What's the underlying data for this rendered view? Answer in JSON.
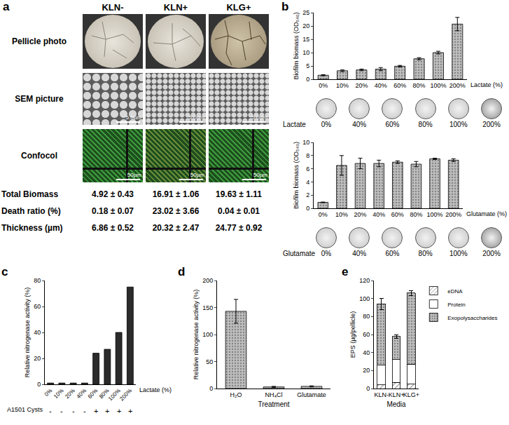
{
  "panel_a": {
    "label": "a",
    "columns": [
      "KLN-",
      "KLN+",
      "KLG+"
    ],
    "image_rows": [
      {
        "label": "Pellicle photo"
      },
      {
        "label": "SEM picture",
        "scale_bar": "5.0µm"
      },
      {
        "label": "Confocol",
        "scale_bar": "50µm"
      }
    ],
    "measurements": [
      {
        "label": "Total Biomass",
        "values": [
          "4.92 ± 0.43",
          "16.91 ± 1.06",
          "19.63 ± 1.11"
        ]
      },
      {
        "label": "Death ratio (%)",
        "values": [
          "0.18 ± 0.07",
          "23.02 ± 3.66",
          "0.04 ± 0.01"
        ]
      },
      {
        "label": "Thickness (µm)",
        "values": [
          "6.86 ± 0.52",
          "20.32 ± 2.47",
          "24.77 ± 0.92"
        ]
      }
    ]
  },
  "chart_data": [
    {
      "panel": "b",
      "type": "bar",
      "categories": [
        "0%",
        "10%",
        "20%",
        "40%",
        "60%",
        "80%",
        "100%",
        "200%"
      ],
      "values": [
        1.5,
        3.2,
        3.5,
        3.8,
        4.9,
        7.7,
        10.0,
        20.7
      ],
      "errors": [
        0.2,
        0.3,
        0.3,
        0.6,
        0.3,
        0.4,
        0.5,
        2.5
      ],
      "color": "#bdbdbd",
      "marker": "dotted",
      "x_label": "Lactate (%)",
      "y_label": "Biofilm biomass (OD₅₄₀)",
      "ylim": [
        0,
        25
      ],
      "yticks": [
        0,
        5,
        10,
        15,
        20,
        25
      ],
      "grid": false,
      "photo_strip": {
        "label": "Lactate",
        "items": [
          "0%",
          "40%",
          "60%",
          "80%",
          "100%",
          "200%"
        ]
      }
    },
    {
      "type": "bar",
      "categories": [
        "0%",
        "10%",
        "20%",
        "40%",
        "60%",
        "80%",
        "100%",
        "200%"
      ],
      "values": [
        0.9,
        6.5,
        6.8,
        6.8,
        7.0,
        6.7,
        7.5,
        7.3
      ],
      "errors": [
        0.05,
        1.5,
        0.8,
        0.5,
        0.2,
        0.4,
        0.1,
        0.2
      ],
      "color": "#bdbdbd",
      "marker": "dotted",
      "x_label": "Glutamate (%)",
      "y_label": "Biofilm biomass (OD₅₄₀)",
      "ylim": [
        0,
        10
      ],
      "yticks": [
        0,
        2,
        4,
        6,
        8,
        10
      ],
      "grid": false,
      "photo_strip": {
        "label": "Glutamate",
        "items": [
          "0%",
          "40%",
          "60%",
          "80%",
          "100%",
          "200%"
        ]
      }
    },
    {
      "panel": "c",
      "type": "bar",
      "categories": [
        "0%",
        "10%",
        "20%",
        "40%",
        "60%",
        "80%",
        "100%",
        "200%"
      ],
      "values": [
        1,
        1,
        1,
        1,
        24,
        27,
        40,
        75
      ],
      "color": "#2b2b2b",
      "marker": "solid",
      "x_label": "Lactate (%)",
      "y_label": "Relative nitrogenase activity (%)",
      "ylim": [
        0,
        80
      ],
      "yticks": [
        0,
        20,
        40,
        60,
        80
      ],
      "grid": false,
      "row": {
        "label": "A1501 Cysts",
        "values": [
          "-",
          "-",
          "-",
          "-",
          "+",
          "+",
          "+",
          "+"
        ]
      }
    },
    {
      "panel": "d",
      "type": "bar",
      "categories": [
        "H₂O",
        "NH₄Cl",
        "Glutamate"
      ],
      "values": [
        143,
        3,
        4
      ],
      "errors": [
        22,
        1,
        1
      ],
      "color": "#bdbdbd",
      "marker": "dotted",
      "x_label": "Treatment",
      "y_label": "Relative nitrogenase activity (%)",
      "ylim": [
        0,
        200
      ],
      "yticks": [
        0,
        50,
        100,
        150,
        200
      ],
      "grid": false
    },
    {
      "panel": "e",
      "type": "bar",
      "stacked": true,
      "categories": [
        "KLN-",
        "KLN+",
        "KLG+"
      ],
      "series": [
        {
          "name": "eDNA",
          "color": "#ffffff",
          "marker": "hatched",
          "values": [
            4,
            7,
            5
          ]
        },
        {
          "name": "Protein",
          "color": "#ffffff",
          "marker": "solid",
          "values": [
            22,
            25,
            22
          ]
        },
        {
          "name": "Exopolysaccharides",
          "color": "#bdbdbd",
          "marker": "dotted",
          "values": [
            68,
            26,
            79
          ],
          "errors": [
            6,
            2,
            3
          ]
        }
      ],
      "x_label": "Media",
      "y_label": "EPS (µg/pellicle)",
      "ylim": [
        0,
        120
      ],
      "yticks": [
        0,
        20,
        40,
        60,
        80,
        100,
        120
      ],
      "grid": false,
      "legend": "right"
    }
  ]
}
